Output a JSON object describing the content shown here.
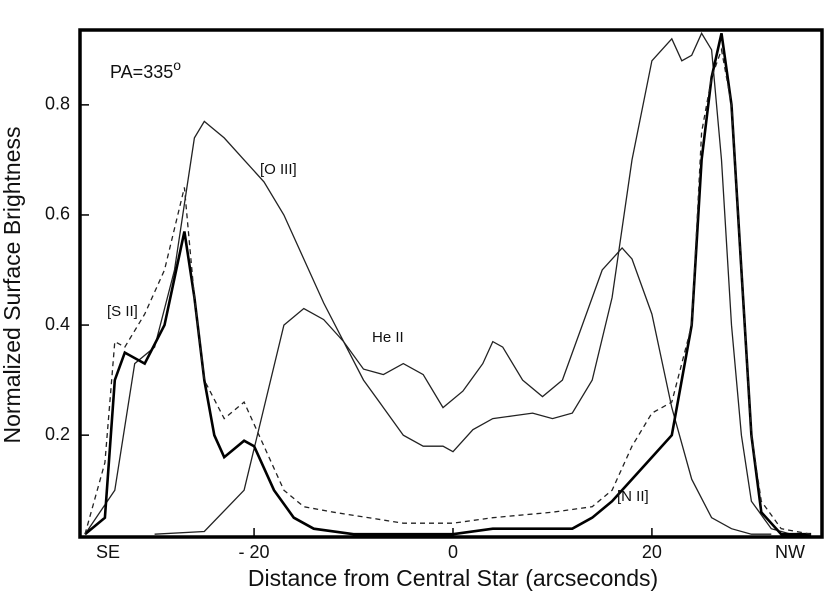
{
  "chart_data": {
    "type": "line",
    "ylabel": "Normalized Surface Brightness",
    "xlabel": "Distance from Central Star (arcseconds)",
    "annotation": "PA=335",
    "annotation_sup": "o",
    "x_end_labels": [
      "SE",
      "NW"
    ],
    "xlim": [
      -37.5,
      37.1
    ],
    "ylim": [
      0.015,
      0.936
    ],
    "xticks": [
      {
        "value": -20,
        "label": "- 20"
      },
      0,
      20
    ],
    "yticks": [
      0.2,
      0.4,
      0.6,
      0.8
    ],
    "series": [
      {
        "name": "[O III]",
        "color": "#222222",
        "x": [
          -37,
          -34,
          -32,
          -30,
          -28,
          -27,
          -26,
          -25,
          -23,
          -21,
          -19,
          -17,
          -15,
          -13,
          -11,
          -9,
          -7,
          -5,
          -3,
          -1,
          0,
          2,
          4,
          6,
          8,
          10,
          12,
          14,
          16,
          18,
          20,
          22,
          23,
          24,
          25,
          26,
          27,
          28,
          29,
          30,
          32,
          34,
          36
        ],
        "values": [
          0.02,
          0.1,
          0.33,
          0.36,
          0.5,
          0.62,
          0.74,
          0.77,
          0.74,
          0.7,
          0.66,
          0.6,
          0.52,
          0.44,
          0.37,
          0.3,
          0.25,
          0.2,
          0.18,
          0.18,
          0.17,
          0.21,
          0.23,
          0.235,
          0.24,
          0.23,
          0.24,
          0.3,
          0.45,
          0.7,
          0.88,
          0.92,
          0.88,
          0.89,
          0.93,
          0.9,
          0.7,
          0.4,
          0.2,
          0.08,
          0.03,
          0.02,
          0.02
        ]
      },
      {
        "name": "He II",
        "color": "#222222",
        "x": [
          -30,
          -25,
          -21,
          -19,
          -17,
          -15,
          -13,
          -11,
          -9,
          -7,
          -5,
          -3,
          -1,
          1,
          3,
          4,
          5,
          7,
          9,
          11,
          13,
          15,
          17,
          18,
          20,
          22,
          24,
          26,
          28,
          30,
          32
        ],
        "values": [
          0.02,
          0.025,
          0.1,
          0.25,
          0.4,
          0.43,
          0.41,
          0.37,
          0.32,
          0.31,
          0.33,
          0.31,
          0.25,
          0.28,
          0.33,
          0.37,
          0.36,
          0.3,
          0.27,
          0.3,
          0.4,
          0.5,
          0.54,
          0.52,
          0.42,
          0.25,
          0.12,
          0.05,
          0.03,
          0.02,
          0.02
        ]
      },
      {
        "name": "[N II]",
        "color": "#000000",
        "x": [
          -37,
          -35,
          -34,
          -33,
          -31,
          -29,
          -27,
          -26,
          -25,
          -24,
          -23,
          -21,
          -20,
          -18,
          -16,
          -14,
          -10,
          0,
          4,
          8,
          12,
          14,
          16,
          18,
          20,
          22,
          24,
          25,
          26,
          27,
          28,
          29,
          30,
          31,
          33,
          36
        ],
        "values": [
          0.02,
          0.05,
          0.3,
          0.35,
          0.33,
          0.4,
          0.57,
          0.45,
          0.3,
          0.2,
          0.16,
          0.19,
          0.18,
          0.1,
          0.05,
          0.03,
          0.02,
          0.02,
          0.03,
          0.03,
          0.03,
          0.05,
          0.08,
          0.12,
          0.16,
          0.2,
          0.4,
          0.7,
          0.85,
          0.93,
          0.8,
          0.5,
          0.2,
          0.06,
          0.02,
          0.02
        ]
      },
      {
        "name": "[S II]",
        "color": "#222222",
        "dashed": true,
        "x": [
          -37,
          -35,
          -34,
          -33,
          -31,
          -29,
          -27,
          -26,
          -25,
          -23,
          -21,
          -19,
          -17,
          -15,
          -12,
          -5,
          0,
          4,
          10,
          14,
          16,
          18,
          20,
          22,
          24,
          25,
          26,
          27,
          28,
          29,
          30,
          31,
          33,
          36
        ],
        "values": [
          0.02,
          0.15,
          0.37,
          0.36,
          0.42,
          0.5,
          0.65,
          0.45,
          0.3,
          0.23,
          0.26,
          0.18,
          0.1,
          0.07,
          0.06,
          0.04,
          0.04,
          0.05,
          0.06,
          0.07,
          0.1,
          0.18,
          0.24,
          0.26,
          0.4,
          0.75,
          0.85,
          0.9,
          0.8,
          0.5,
          0.2,
          0.08,
          0.03,
          0.02
        ]
      }
    ]
  }
}
